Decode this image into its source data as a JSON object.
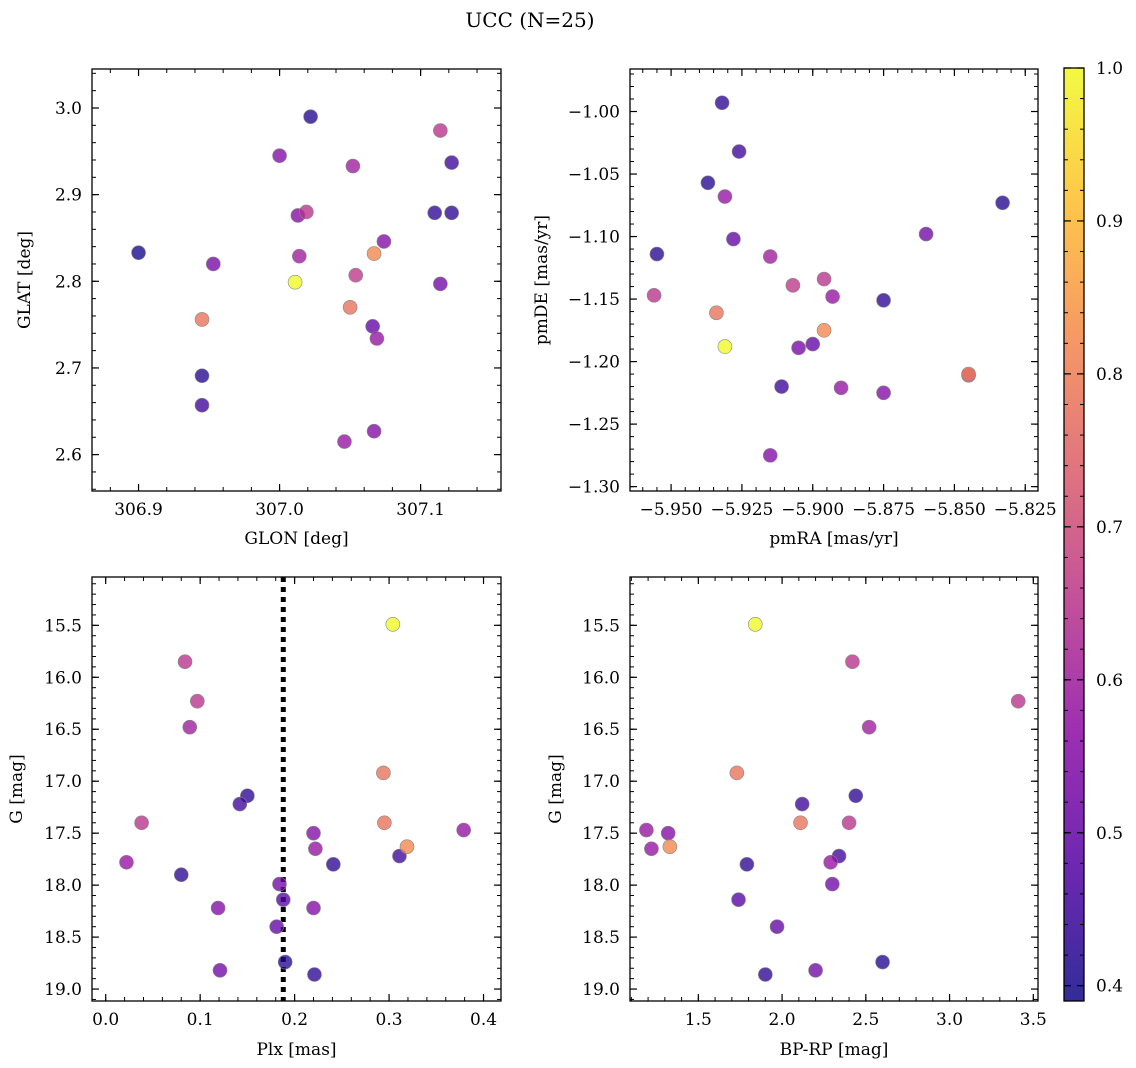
{
  "figure": {
    "title": "UCC (N=25)"
  },
  "colors": {
    "cmap": [
      "#0d0887",
      "#5302a3",
      "#8b0aa5",
      "#b83289",
      "#db5c68",
      "#f48849",
      "#febd2a",
      "#f0f921"
    ],
    "point_alpha": 0.78,
    "edge": "#888888",
    "threshold_line": "#000000"
  },
  "chart_data": [
    {
      "type": "scatter",
      "xlabel": "GLON [deg]",
      "ylabel": "GLAT [deg]",
      "xlim": [
        306.867,
        307.157
      ],
      "ylim": [
        2.558,
        3.045
      ],
      "xticks": [
        306.9,
        307.0,
        307.1
      ],
      "xticklabels": [
        "306.9",
        "307.0",
        "307.1"
      ],
      "yticks": [
        2.6,
        2.7,
        2.8,
        2.9,
        3.0
      ],
      "yticklabels": [
        "2.6",
        "2.7",
        "2.8",
        "2.9",
        "3.0"
      ],
      "points": [
        {
          "x": 306.9,
          "y": 2.833,
          "c": 0.4
        },
        {
          "x": 306.945,
          "y": 2.691,
          "c": 0.42
        },
        {
          "x": 306.945,
          "y": 2.657,
          "c": 0.45
        },
        {
          "x": 306.945,
          "y": 2.756,
          "c": 0.78
        },
        {
          "x": 306.953,
          "y": 2.82,
          "c": 0.53
        },
        {
          "x": 307.0,
          "y": 2.945,
          "c": 0.55
        },
        {
          "x": 307.011,
          "y": 2.799,
          "c": 1.0
        },
        {
          "x": 307.013,
          "y": 2.876,
          "c": 0.55
        },
        {
          "x": 307.014,
          "y": 2.829,
          "c": 0.6
        },
        {
          "x": 307.019,
          "y": 2.88,
          "c": 0.65
        },
        {
          "x": 307.022,
          "y": 2.99,
          "c": 0.42
        },
        {
          "x": 307.046,
          "y": 2.615,
          "c": 0.58
        },
        {
          "x": 307.05,
          "y": 2.77,
          "c": 0.78
        },
        {
          "x": 307.052,
          "y": 2.933,
          "c": 0.6
        },
        {
          "x": 307.054,
          "y": 2.807,
          "c": 0.66
        },
        {
          "x": 307.066,
          "y": 2.748,
          "c": 0.5
        },
        {
          "x": 307.067,
          "y": 2.627,
          "c": 0.55
        },
        {
          "x": 307.067,
          "y": 2.832,
          "c": 0.82
        },
        {
          "x": 307.069,
          "y": 2.734,
          "c": 0.58
        },
        {
          "x": 307.074,
          "y": 2.846,
          "c": 0.55
        },
        {
          "x": 307.11,
          "y": 2.879,
          "c": 0.43
        },
        {
          "x": 307.114,
          "y": 2.974,
          "c": 0.65
        },
        {
          "x": 307.114,
          "y": 2.797,
          "c": 0.52
        },
        {
          "x": 307.122,
          "y": 2.937,
          "c": 0.45
        },
        {
          "x": 307.122,
          "y": 2.879,
          "c": 0.43
        }
      ]
    },
    {
      "type": "scatter",
      "xlabel": "pmRA [mas/yr]",
      "ylabel": "pmDE [mas/yr]",
      "xlim": [
        -5.9645,
        -5.8205
      ],
      "ylim": [
        -1.3035,
        -0.966
      ],
      "xticks": [
        -5.95,
        -5.925,
        -5.9,
        -5.875,
        -5.85,
        -5.825
      ],
      "xticklabels": [
        "−5.950",
        "−5.925",
        "−5.900",
        "−5.875",
        "−5.850",
        "−5.825"
      ],
      "yticks": [
        -1.3,
        -1.25,
        -1.2,
        -1.15,
        -1.1,
        -1.05,
        -1.0
      ],
      "yticklabels": [
        "−1.30",
        "−1.25",
        "−1.20",
        "−1.15",
        "−1.10",
        "−1.05",
        "−1.00"
      ],
      "points": [
        {
          "x": -5.932,
          "y": -0.993,
          "c": 0.43
        },
        {
          "x": -5.926,
          "y": -1.032,
          "c": 0.45
        },
        {
          "x": -5.937,
          "y": -1.057,
          "c": 0.42
        },
        {
          "x": -5.931,
          "y": -1.068,
          "c": 0.58
        },
        {
          "x": -5.833,
          "y": -1.073,
          "c": 0.42
        },
        {
          "x": -5.86,
          "y": -1.098,
          "c": 0.52
        },
        {
          "x": -5.928,
          "y": -1.102,
          "c": 0.5
        },
        {
          "x": -5.955,
          "y": -1.114,
          "c": 0.42
        },
        {
          "x": -5.915,
          "y": -1.116,
          "c": 0.6
        },
        {
          "x": -5.896,
          "y": -1.134,
          "c": 0.65
        },
        {
          "x": -5.907,
          "y": -1.139,
          "c": 0.66
        },
        {
          "x": -5.956,
          "y": -1.147,
          "c": 0.65
        },
        {
          "x": -5.893,
          "y": -1.148,
          "c": 0.58
        },
        {
          "x": -5.875,
          "y": -1.151,
          "c": 0.43
        },
        {
          "x": -5.934,
          "y": -1.161,
          "c": 0.78
        },
        {
          "x": -5.896,
          "y": -1.175,
          "c": 0.82
        },
        {
          "x": -5.9,
          "y": -1.186,
          "c": 0.5
        },
        {
          "x": -5.931,
          "y": -1.188,
          "c": 1.0
        },
        {
          "x": -5.905,
          "y": -1.189,
          "c": 0.53
        },
        {
          "x": -5.845,
          "y": -1.21,
          "c": 0.78
        },
        {
          "x": -5.845,
          "y": -1.211,
          "c": 0.7
        },
        {
          "x": -5.911,
          "y": -1.22,
          "c": 0.45
        },
        {
          "x": -5.89,
          "y": -1.221,
          "c": 0.58
        },
        {
          "x": -5.875,
          "y": -1.225,
          "c": 0.55
        },
        {
          "x": -5.915,
          "y": -1.275,
          "c": 0.55
        }
      ]
    },
    {
      "type": "scatter",
      "xlabel": "Plx [mas]",
      "ylabel": "G [mag]",
      "xlim": [
        -0.0145,
        0.4185
      ],
      "ylim": [
        19.115,
        15.035
      ],
      "y_inverted": true,
      "xticks": [
        0.0,
        0.1,
        0.2,
        0.3,
        0.4
      ],
      "xticklabels": [
        "0.0",
        "0.1",
        "0.2",
        "0.3",
        "0.4"
      ],
      "yticks": [
        15.5,
        16.0,
        16.5,
        17.0,
        17.5,
        18.0,
        18.5,
        19.0
      ],
      "yticklabels": [
        "15.5",
        "16.0",
        "16.5",
        "17.0",
        "17.5",
        "18.0",
        "18.5",
        "19.0"
      ],
      "vline": 0.188,
      "points": [
        {
          "x": 0.304,
          "y": 15.49,
          "c": 1.0
        },
        {
          "x": 0.084,
          "y": 15.85,
          "c": 0.65
        },
        {
          "x": 0.097,
          "y": 16.23,
          "c": 0.65
        },
        {
          "x": 0.089,
          "y": 16.48,
          "c": 0.6
        },
        {
          "x": 0.294,
          "y": 16.92,
          "c": 0.78
        },
        {
          "x": 0.15,
          "y": 17.14,
          "c": 0.43
        },
        {
          "x": 0.142,
          "y": 17.22,
          "c": 0.45
        },
        {
          "x": 0.038,
          "y": 17.4,
          "c": 0.65
        },
        {
          "x": 0.295,
          "y": 17.4,
          "c": 0.78
        },
        {
          "x": 0.379,
          "y": 17.47,
          "c": 0.58
        },
        {
          "x": 0.22,
          "y": 17.5,
          "c": 0.55
        },
        {
          "x": 0.319,
          "y": 17.63,
          "c": 0.82
        },
        {
          "x": 0.222,
          "y": 17.65,
          "c": 0.58
        },
        {
          "x": 0.311,
          "y": 17.72,
          "c": 0.45
        },
        {
          "x": 0.022,
          "y": 17.78,
          "c": 0.58
        },
        {
          "x": 0.241,
          "y": 17.8,
          "c": 0.43
        },
        {
          "x": 0.08,
          "y": 17.9,
          "c": 0.43
        },
        {
          "x": 0.184,
          "y": 17.99,
          "c": 0.52
        },
        {
          "x": 0.188,
          "y": 18.14,
          "c": 0.48
        },
        {
          "x": 0.119,
          "y": 18.22,
          "c": 0.55
        },
        {
          "x": 0.22,
          "y": 18.22,
          "c": 0.55
        },
        {
          "x": 0.181,
          "y": 18.4,
          "c": 0.5
        },
        {
          "x": 0.19,
          "y": 18.74,
          "c": 0.42
        },
        {
          "x": 0.121,
          "y": 18.82,
          "c": 0.52
        },
        {
          "x": 0.221,
          "y": 18.86,
          "c": 0.43
        }
      ]
    },
    {
      "type": "scatter",
      "xlabel": "BP-RP [mag]",
      "ylabel": "G [mag]",
      "xlim": [
        1.092,
        3.528
      ],
      "ylim": [
        19.115,
        15.035
      ],
      "y_inverted": true,
      "xticks": [
        1.5,
        2.0,
        2.5,
        3.0,
        3.5
      ],
      "xticklabels": [
        "1.5",
        "2.0",
        "2.5",
        "3.0",
        "3.5"
      ],
      "yticks": [
        15.5,
        16.0,
        16.5,
        17.0,
        17.5,
        18.0,
        18.5,
        19.0
      ],
      "yticklabels": [
        "15.5",
        "16.0",
        "16.5",
        "17.0",
        "17.5",
        "18.0",
        "18.5",
        "19.0"
      ],
      "points": [
        {
          "x": 1.84,
          "y": 15.49,
          "c": 1.0
        },
        {
          "x": 2.42,
          "y": 15.85,
          "c": 0.65
        },
        {
          "x": 3.41,
          "y": 16.23,
          "c": 0.65
        },
        {
          "x": 2.52,
          "y": 16.48,
          "c": 0.6
        },
        {
          "x": 1.73,
          "y": 16.92,
          "c": 0.78
        },
        {
          "x": 2.44,
          "y": 17.14,
          "c": 0.43
        },
        {
          "x": 2.12,
          "y": 17.22,
          "c": 0.45
        },
        {
          "x": 2.4,
          "y": 17.4,
          "c": 0.65
        },
        {
          "x": 2.11,
          "y": 17.4,
          "c": 0.78
        },
        {
          "x": 1.19,
          "y": 17.47,
          "c": 0.58
        },
        {
          "x": 1.32,
          "y": 17.5,
          "c": 0.55
        },
        {
          "x": 1.33,
          "y": 17.63,
          "c": 0.82
        },
        {
          "x": 1.22,
          "y": 17.65,
          "c": 0.58
        },
        {
          "x": 2.34,
          "y": 17.72,
          "c": 0.45
        },
        {
          "x": 2.29,
          "y": 17.78,
          "c": 0.58
        },
        {
          "x": 1.79,
          "y": 17.8,
          "c": 0.43
        },
        {
          "x": 2.3,
          "y": 17.99,
          "c": 0.52
        },
        {
          "x": 1.74,
          "y": 18.14,
          "c": 0.48
        },
        {
          "x": 1.97,
          "y": 18.4,
          "c": 0.5
        },
        {
          "x": 2.6,
          "y": 18.74,
          "c": 0.42
        },
        {
          "x": 2.2,
          "y": 18.82,
          "c": 0.52
        },
        {
          "x": 1.9,
          "y": 18.86,
          "c": 0.43
        }
      ]
    }
  ],
  "colorbar": {
    "vmin": 0.39,
    "vmax": 1.0,
    "ticks": [
      0.4,
      0.5,
      0.6,
      0.7,
      0.8,
      0.9,
      1.0
    ],
    "ticklabels": [
      "0.4",
      "0.5",
      "0.6",
      "0.7",
      "0.8",
      "0.9",
      "1.0"
    ]
  }
}
